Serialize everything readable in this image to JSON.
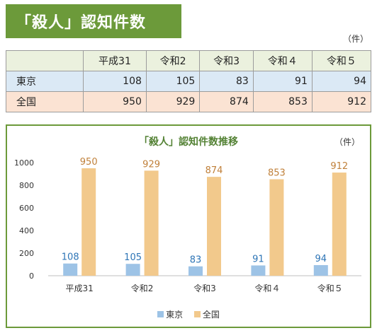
{
  "header": {
    "title": "「殺人」認知件数",
    "unit": "（件）"
  },
  "table": {
    "columns": [
      "平成31",
      "令和2",
      "令和3",
      "令和４",
      "令和５"
    ],
    "rows": [
      {
        "label": "東京",
        "values": [
          "108",
          "105",
          "83",
          "91",
          "94"
        ]
      },
      {
        "label": "全国",
        "values": [
          "950",
          "929",
          "874",
          "853",
          "912"
        ]
      }
    ]
  },
  "chart_data": {
    "type": "bar",
    "title": "「殺人」認知件数推移",
    "unit": "（件）",
    "categories": [
      "平成31",
      "令和2",
      "令和3",
      "令和４",
      "令和５"
    ],
    "series": [
      {
        "name": "東京",
        "values": [
          108,
          105,
          83,
          91,
          94
        ],
        "color": "#9dc3e6",
        "label_color": "#2e75b6"
      },
      {
        "name": "全国",
        "values": [
          950,
          929,
          874,
          853,
          912
        ],
        "color": "#f2c98c",
        "label_color": "#c0803a"
      }
    ],
    "yticks": [
      "0",
      "200",
      "400",
      "600",
      "800",
      "1000"
    ],
    "ylim": [
      0,
      1000
    ],
    "grid": false,
    "legend": "bottom"
  }
}
